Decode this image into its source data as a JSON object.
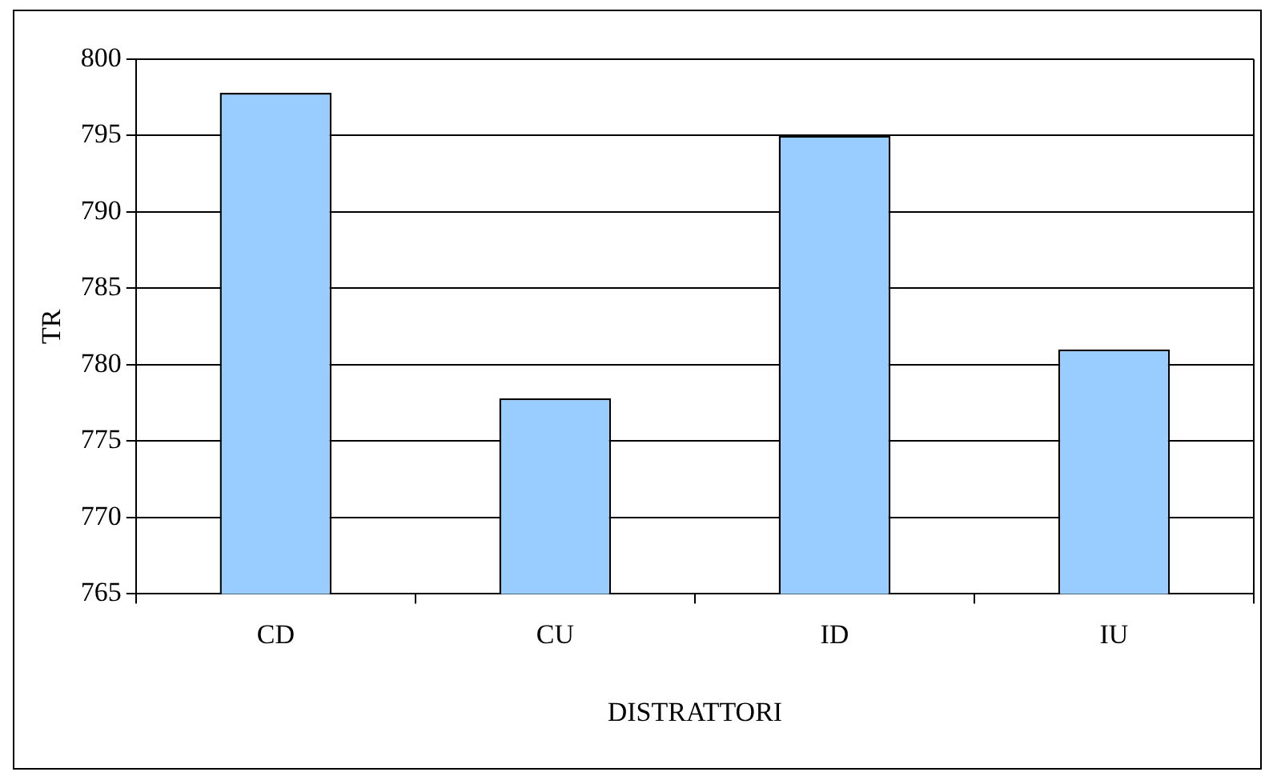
{
  "chart_data": {
    "type": "bar",
    "xlabel": "DISTRATTORI",
    "ylabel": "TR",
    "categories": [
      "CD",
      "CU",
      "ID",
      "IU"
    ],
    "values": [
      797.8,
      777.8,
      795,
      781
    ],
    "color": "#99ccff",
    "ylim": [
      765,
      800
    ],
    "yticks": [
      765,
      770,
      775,
      780,
      785,
      790,
      795,
      800
    ],
    "grid": "y",
    "legend": false
  }
}
